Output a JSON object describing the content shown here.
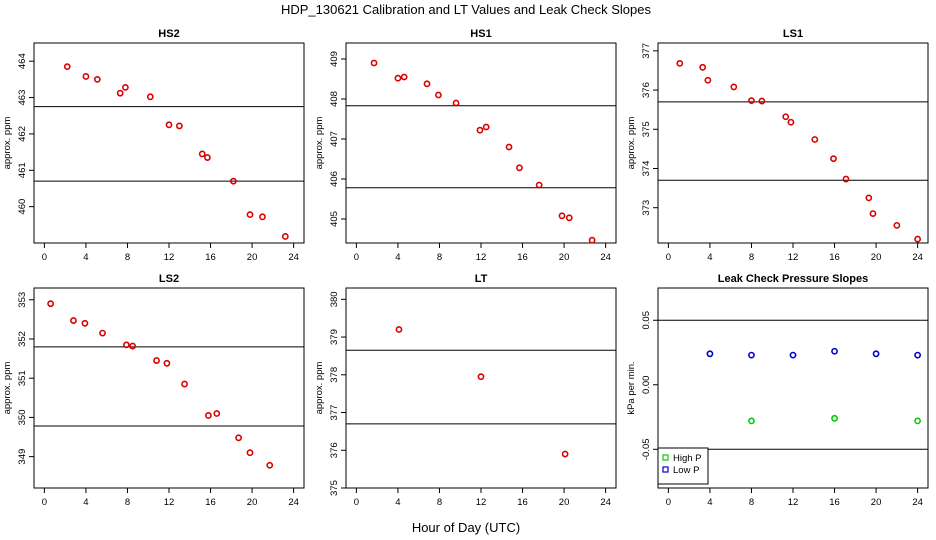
{
  "figure": {
    "title": "HDP_130621  Calibration and LT Values and Leak Check Slopes",
    "xlabel": "Hour of Day (UTC)"
  },
  "chart_data": [
    {
      "type": "scatter",
      "title": "HS2",
      "ylabel": "approx. ppm",
      "xlim": [
        -1,
        25
      ],
      "ylim": [
        459.0,
        464.5
      ],
      "xticks": [
        0,
        4,
        8,
        12,
        16,
        20,
        24
      ],
      "yticks": [
        460,
        461,
        462,
        463,
        464
      ],
      "hlines": [
        462.75,
        460.7
      ],
      "series": [
        {
          "color": "#dd0000",
          "marker": "circle",
          "x": [
            2.2,
            4.0,
            5.1,
            7.3,
            7.8,
            10.2,
            12.0,
            13.0,
            15.2,
            15.7,
            18.2,
            19.8,
            21.0,
            23.2
          ],
          "y": [
            463.85,
            463.58,
            463.5,
            463.12,
            463.28,
            463.02,
            462.25,
            462.22,
            461.45,
            461.35,
            460.7,
            459.78,
            459.72,
            459.18
          ]
        }
      ]
    },
    {
      "type": "scatter",
      "title": "HS1",
      "ylabel": "approx. ppm",
      "xlim": [
        -1,
        25
      ],
      "ylim": [
        404.4,
        409.4
      ],
      "xticks": [
        0,
        4,
        8,
        12,
        16,
        20,
        24
      ],
      "yticks": [
        405,
        406,
        407,
        408,
        409
      ],
      "hlines": [
        407.83,
        405.78
      ],
      "series": [
        {
          "color": "#dd0000",
          "marker": "circle",
          "x": [
            1.7,
            4.0,
            4.6,
            6.8,
            7.9,
            9.6,
            11.9,
            12.5,
            14.7,
            15.7,
            17.6,
            19.8,
            20.5,
            22.7
          ],
          "y": [
            408.9,
            408.52,
            408.55,
            408.38,
            408.1,
            407.9,
            407.22,
            407.3,
            406.8,
            406.28,
            405.85,
            405.08,
            405.03,
            404.47
          ]
        }
      ]
    },
    {
      "type": "scatter",
      "title": "LS1",
      "ylabel": "approx. ppm",
      "xlim": [
        -1,
        25
      ],
      "ylim": [
        372.1,
        377.2
      ],
      "xticks": [
        0,
        4,
        8,
        12,
        16,
        20,
        24
      ],
      "yticks": [
        373,
        374,
        375,
        376,
        377
      ],
      "hlines": [
        375.7,
        373.7
      ],
      "series": [
        {
          "color": "#dd0000",
          "marker": "circle",
          "x": [
            1.1,
            3.3,
            3.8,
            6.3,
            8.0,
            9.0,
            11.3,
            11.8,
            14.1,
            15.9,
            17.1,
            19.3,
            19.7,
            22.0,
            24.0
          ],
          "y": [
            376.68,
            376.58,
            376.25,
            376.08,
            375.73,
            375.72,
            375.32,
            375.18,
            374.74,
            374.25,
            373.73,
            373.25,
            372.85,
            372.55,
            372.2
          ]
        }
      ]
    },
    {
      "type": "scatter",
      "title": "LS2",
      "ylabel": "approx. ppm",
      "xlim": [
        -1,
        25
      ],
      "ylim": [
        348.2,
        353.3
      ],
      "xticks": [
        0,
        4,
        8,
        12,
        16,
        20,
        24
      ],
      "yticks": [
        349,
        350,
        351,
        352,
        353
      ],
      "hlines": [
        351.8,
        349.78
      ],
      "series": [
        {
          "color": "#dd0000",
          "marker": "circle",
          "x": [
            0.6,
            2.8,
            3.9,
            5.6,
            7.9,
            8.5,
            10.8,
            11.8,
            13.5,
            15.8,
            16.6,
            18.7,
            19.8,
            21.7
          ],
          "y": [
            352.9,
            352.47,
            352.4,
            352.15,
            351.85,
            351.82,
            351.45,
            351.38,
            350.85,
            350.05,
            350.1,
            349.48,
            349.1,
            348.78
          ]
        }
      ]
    },
    {
      "type": "scatter",
      "title": "LT",
      "ylabel": "approx. ppm",
      "xlim": [
        -1,
        25
      ],
      "ylim": [
        375,
        380.3
      ],
      "xticks": [
        0,
        4,
        8,
        12,
        16,
        20,
        24
      ],
      "yticks": [
        375,
        376,
        377,
        378,
        379,
        380
      ],
      "hlines": [
        378.65,
        376.7
      ],
      "series": [
        {
          "color": "#dd0000",
          "marker": "circle",
          "x": [
            4.1,
            12.0,
            20.1
          ],
          "y": [
            379.2,
            377.95,
            375.9
          ]
        }
      ]
    },
    {
      "type": "scatter",
      "title": "Leak Check Pressure Slopes",
      "ylabel": "kPa per min.",
      "xlim": [
        -1,
        25
      ],
      "ylim": [
        -0.08,
        0.075
      ],
      "xticks": [
        0,
        4,
        8,
        12,
        16,
        20,
        24
      ],
      "yticks": [
        -0.05,
        0.0,
        0.05
      ],
      "ytick_labels": [
        "-0.05",
        "0.00",
        "0.05"
      ],
      "hlines": [
        0.05,
        -0.05
      ],
      "legend": "bottom-left",
      "series": [
        {
          "name": "High P",
          "color": "#00cc00",
          "marker": "circle",
          "x": [
            8,
            16,
            24
          ],
          "y": [
            -0.028,
            -0.026,
            -0.028
          ]
        },
        {
          "name": "Low P",
          "color": "#0000cc",
          "marker": "circle",
          "x": [
            4,
            8,
            12,
            16,
            20,
            24
          ],
          "y": [
            0.024,
            0.023,
            0.023,
            0.026,
            0.024,
            0.023
          ]
        }
      ]
    }
  ]
}
